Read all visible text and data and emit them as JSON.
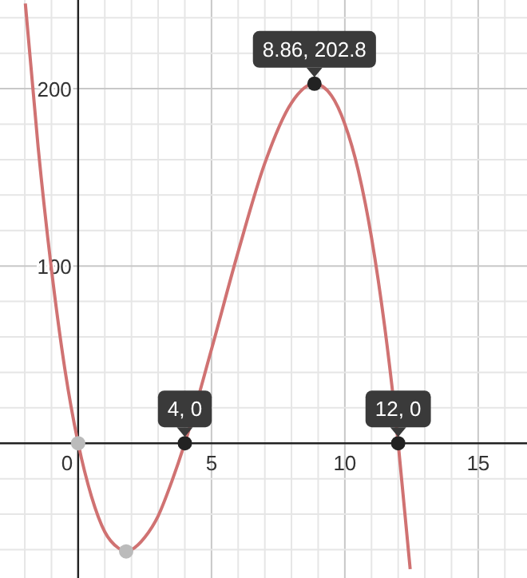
{
  "chart_data": {
    "type": "line",
    "xlim": [
      -2.93,
      16.83
    ],
    "ylim": [
      -76,
      250
    ],
    "xticks": [
      {
        "value": -2,
        "label": null
      },
      {
        "value": -1,
        "label": null
      },
      {
        "value": 0,
        "label": "0"
      },
      {
        "value": 1,
        "label": null
      },
      {
        "value": 2,
        "label": null
      },
      {
        "value": 3,
        "label": null
      },
      {
        "value": 4,
        "label": null
      },
      5,
      {
        "value": 6,
        "label": null
      },
      {
        "value": 7,
        "label": null
      },
      {
        "value": 8,
        "label": null
      },
      {
        "value": 9,
        "label": null
      },
      10,
      {
        "value": 11,
        "label": null
      },
      {
        "value": 12,
        "label": null
      },
      {
        "value": 13,
        "label": null
      },
      {
        "value": 14,
        "label": null
      },
      15,
      {
        "value": 16,
        "label": null
      }
    ],
    "yticks": [
      {
        "value": -60,
        "label": null
      },
      {
        "value": -40,
        "label": null
      },
      {
        "value": -20,
        "label": null
      },
      {
        "value": 0,
        "label": null
      },
      {
        "value": 20,
        "label": null
      },
      {
        "value": 40,
        "label": null
      },
      {
        "value": 60,
        "label": null
      },
      {
        "value": 80,
        "label": null
      },
      100,
      {
        "value": 120,
        "label": null
      },
      {
        "value": 140,
        "label": null
      },
      {
        "value": 160,
        "label": null
      },
      {
        "value": 180,
        "label": null
      },
      200,
      {
        "value": 220,
        "label": null
      },
      {
        "value": 240,
        "label": null
      }
    ],
    "grid": true,
    "series": [
      {
        "type": "line",
        "color": "#d07272",
        "x": [
          -1.98,
          -1.5,
          -1,
          -0.5,
          0,
          0.5,
          1,
          1.5,
          1.8,
          2,
          2.5,
          3,
          3.5,
          4,
          5,
          6,
          7,
          8,
          8.86,
          9.5,
          10,
          10.5,
          11,
          11.5,
          12,
          12.45
        ],
        "values": [
          248,
          167,
          98,
          42,
          0,
          -30,
          -50,
          -59,
          -61,
          -60,
          -53,
          -41,
          -22,
          0,
          53,
          108,
          158,
          192,
          202.8,
          196,
          180,
          154,
          116,
          65,
          0,
          -71
        ]
      },
      {
        "type": "scatter",
        "marker": "circle",
        "x": [
          0,
          1.8,
          4,
          8.86,
          12
        ],
        "values": [
          0,
          -61,
          0,
          202.8,
          0
        ],
        "colors": [
          "#bbbbbb",
          "#bbbbbb",
          "#222222",
          "#222222",
          "#222222"
        ]
      }
    ],
    "annotations": [
      {
        "text": "4, 0",
        "x": 4,
        "y": 0
      },
      {
        "text": "8.86, 202.8",
        "x": 8.86,
        "y": 202.8
      },
      {
        "text": "12, 0",
        "x": 12,
        "y": 0
      }
    ]
  }
}
